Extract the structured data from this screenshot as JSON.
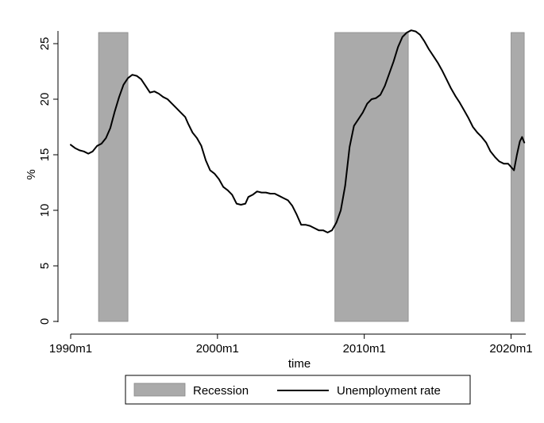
{
  "chart_data": {
    "type": "line",
    "xlabel": "time",
    "ylabel": "%",
    "xlim": [
      1990.0,
      2021.0
    ],
    "ylim": [
      0,
      26
    ],
    "x_ticks": [
      {
        "value": 1990.0,
        "label": "1990m1"
      },
      {
        "value": 2000.0,
        "label": "2000m1"
      },
      {
        "value": 2010.0,
        "label": "2010m1"
      },
      {
        "value": 2020.0,
        "label": "2020m1"
      }
    ],
    "y_ticks": [
      0,
      5,
      10,
      15,
      20,
      25
    ],
    "grid": false,
    "legend_position": "bottom",
    "recession_periods": {
      "name": "Recession",
      "color": "#aaaaaa",
      "edge_color": "#888888",
      "height": 26,
      "periods": [
        [
          1991.9,
          1993.9
        ],
        [
          2008.0,
          2013.0
        ],
        [
          2020.0,
          2020.9
        ]
      ]
    },
    "series": [
      {
        "name": "Unemployment rate",
        "color": "#000000",
        "points": [
          [
            1990.0,
            15.9
          ],
          [
            1990.3,
            15.6
          ],
          [
            1990.6,
            15.4
          ],
          [
            1990.9,
            15.3
          ],
          [
            1991.2,
            15.1
          ],
          [
            1991.5,
            15.3
          ],
          [
            1991.8,
            15.8
          ],
          [
            1992.1,
            16.0
          ],
          [
            1992.4,
            16.5
          ],
          [
            1992.7,
            17.4
          ],
          [
            1993.0,
            18.9
          ],
          [
            1993.3,
            20.2
          ],
          [
            1993.6,
            21.3
          ],
          [
            1993.9,
            21.9
          ],
          [
            1994.2,
            22.2
          ],
          [
            1994.5,
            22.1
          ],
          [
            1994.8,
            21.8
          ],
          [
            1995.1,
            21.2
          ],
          [
            1995.4,
            20.6
          ],
          [
            1995.7,
            20.7
          ],
          [
            1996.0,
            20.5
          ],
          [
            1996.3,
            20.2
          ],
          [
            1996.6,
            20.0
          ],
          [
            1996.9,
            19.6
          ],
          [
            1997.2,
            19.2
          ],
          [
            1997.5,
            18.8
          ],
          [
            1997.8,
            18.4
          ],
          [
            1998.0,
            17.8
          ],
          [
            1998.3,
            17.0
          ],
          [
            1998.6,
            16.5
          ],
          [
            1998.9,
            15.8
          ],
          [
            1999.2,
            14.5
          ],
          [
            1999.5,
            13.6
          ],
          [
            1999.8,
            13.3
          ],
          [
            2000.1,
            12.8
          ],
          [
            2000.4,
            12.1
          ],
          [
            2000.7,
            11.8
          ],
          [
            2001.0,
            11.4
          ],
          [
            2001.3,
            10.6
          ],
          [
            2001.6,
            10.5
          ],
          [
            2001.9,
            10.6
          ],
          [
            2002.1,
            11.2
          ],
          [
            2002.4,
            11.4
          ],
          [
            2002.7,
            11.7
          ],
          [
            2003.0,
            11.6
          ],
          [
            2003.3,
            11.6
          ],
          [
            2003.6,
            11.5
          ],
          [
            2003.9,
            11.5
          ],
          [
            2004.2,
            11.3
          ],
          [
            2004.5,
            11.1
          ],
          [
            2004.8,
            10.9
          ],
          [
            2005.1,
            10.4
          ],
          [
            2005.4,
            9.6
          ],
          [
            2005.7,
            8.7
          ],
          [
            2006.0,
            8.7
          ],
          [
            2006.3,
            8.6
          ],
          [
            2006.6,
            8.4
          ],
          [
            2006.9,
            8.2
          ],
          [
            2007.2,
            8.2
          ],
          [
            2007.5,
            8.0
          ],
          [
            2007.8,
            8.2
          ],
          [
            2008.1,
            8.9
          ],
          [
            2008.4,
            10.0
          ],
          [
            2008.7,
            12.2
          ],
          [
            2009.0,
            15.7
          ],
          [
            2009.3,
            17.6
          ],
          [
            2009.6,
            18.2
          ],
          [
            2009.9,
            18.8
          ],
          [
            2010.2,
            19.6
          ],
          [
            2010.5,
            20.0
          ],
          [
            2010.8,
            20.1
          ],
          [
            2011.1,
            20.4
          ],
          [
            2011.4,
            21.2
          ],
          [
            2011.7,
            22.3
          ],
          [
            2012.0,
            23.4
          ],
          [
            2012.3,
            24.7
          ],
          [
            2012.6,
            25.6
          ],
          [
            2012.9,
            26.0
          ],
          [
            2013.2,
            26.2
          ],
          [
            2013.5,
            26.1
          ],
          [
            2013.8,
            25.8
          ],
          [
            2014.1,
            25.2
          ],
          [
            2014.4,
            24.5
          ],
          [
            2014.7,
            23.9
          ],
          [
            2015.0,
            23.3
          ],
          [
            2015.3,
            22.6
          ],
          [
            2015.6,
            21.8
          ],
          [
            2015.9,
            21.0
          ],
          [
            2016.2,
            20.3
          ],
          [
            2016.5,
            19.7
          ],
          [
            2016.8,
            19.0
          ],
          [
            2017.1,
            18.3
          ],
          [
            2017.4,
            17.5
          ],
          [
            2017.7,
            17.0
          ],
          [
            2018.0,
            16.6
          ],
          [
            2018.3,
            16.1
          ],
          [
            2018.6,
            15.3
          ],
          [
            2018.9,
            14.8
          ],
          [
            2019.2,
            14.4
          ],
          [
            2019.5,
            14.2
          ],
          [
            2019.8,
            14.2
          ],
          [
            2020.0,
            13.9
          ],
          [
            2020.2,
            13.6
          ],
          [
            2020.4,
            15.0
          ],
          [
            2020.6,
            16.2
          ],
          [
            2020.75,
            16.6
          ],
          [
            2020.9,
            16.1
          ]
        ]
      }
    ]
  }
}
